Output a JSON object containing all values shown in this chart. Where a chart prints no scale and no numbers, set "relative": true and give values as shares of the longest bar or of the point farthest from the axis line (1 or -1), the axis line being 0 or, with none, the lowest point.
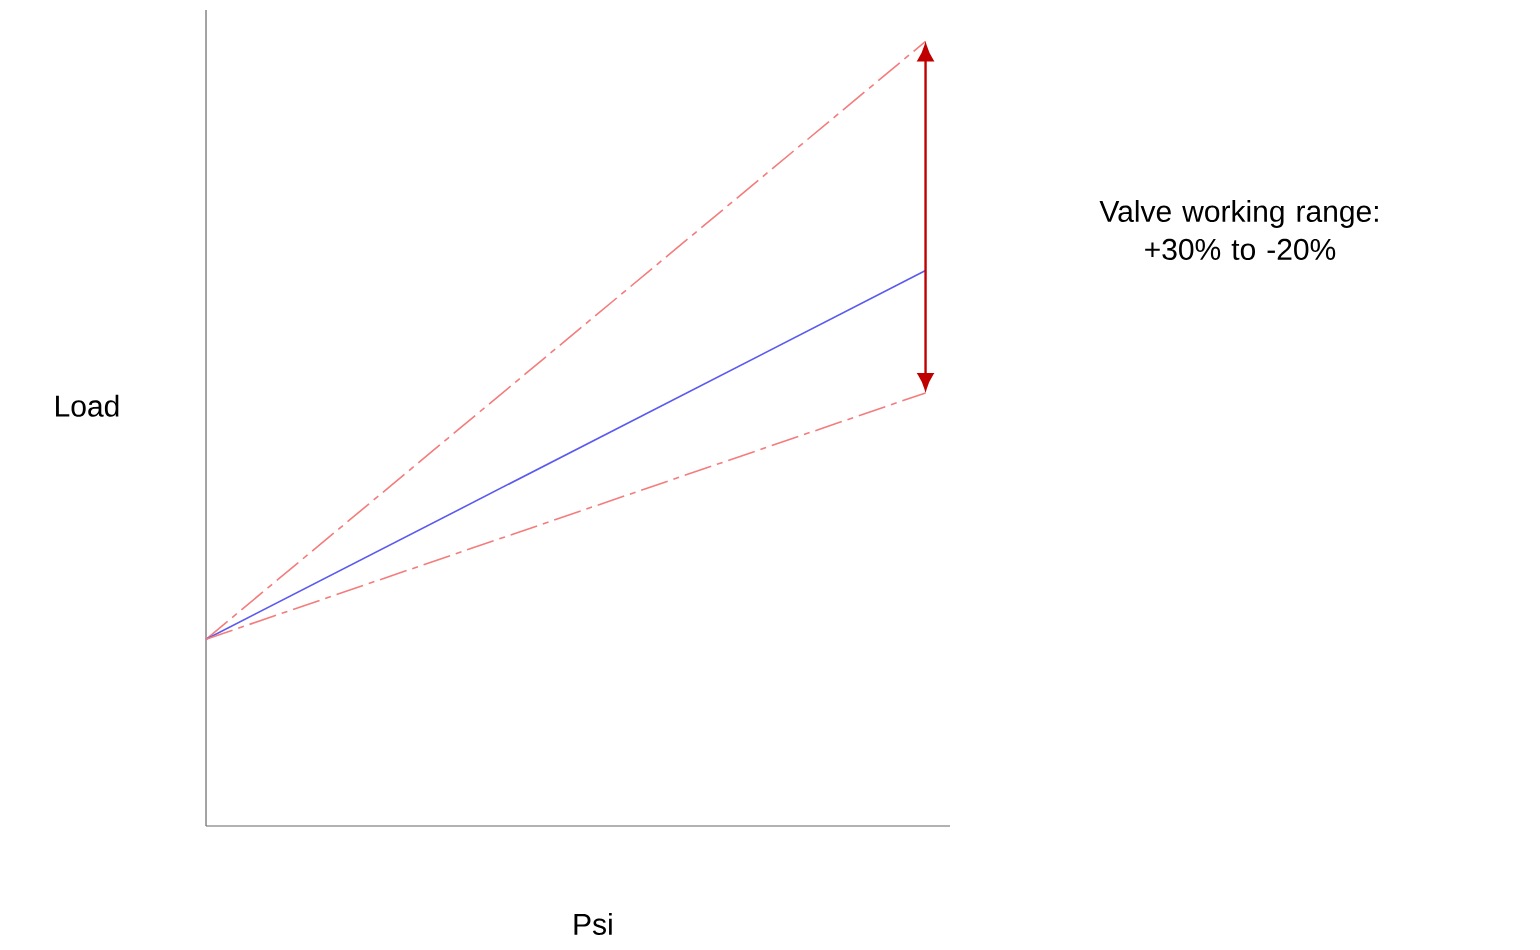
{
  "chart_data": {
    "type": "line",
    "relative": true,
    "xlabel": "Psi",
    "ylabel": "Load",
    "categories": [
      null,
      null
    ],
    "series": [
      {
        "color": "#f47c7c",
        "values": [
          0.238,
          1
        ],
        "line_style": "dashed"
      },
      {
        "color": "#5a5af0",
        "values": [
          0.238,
          0.708
        ],
        "line_style": "solid"
      },
      {
        "color": "#f47c7c",
        "values": [
          0.238,
          0.552
        ],
        "line_style": "dashed"
      }
    ],
    "annotations": [
      "Valve working range: +30% to -20%"
    ],
    "marker": "none"
  }
}
